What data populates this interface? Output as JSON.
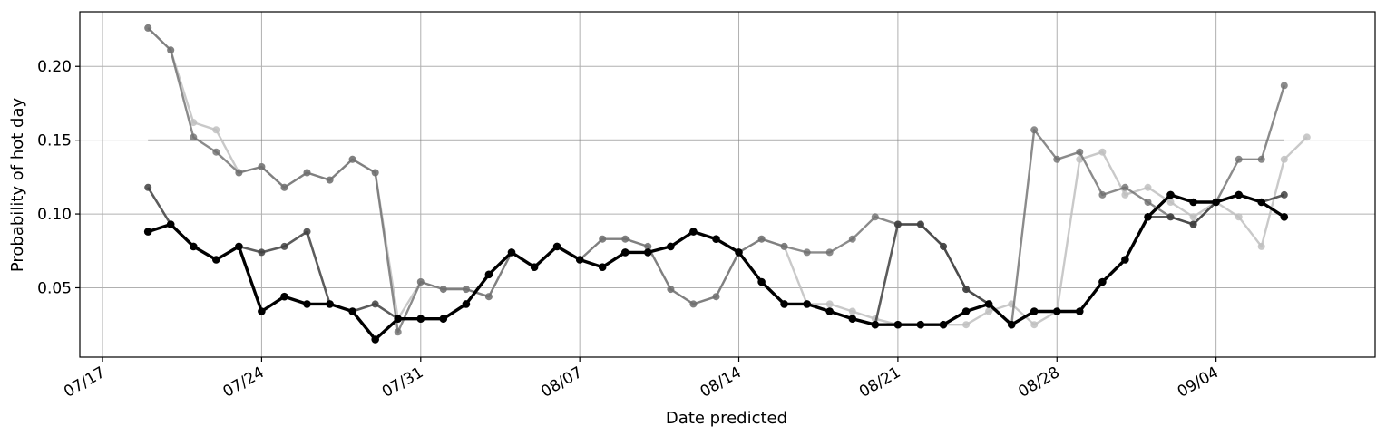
{
  "chart_data": {
    "type": "line",
    "title": "",
    "xlabel": "Date predicted",
    "ylabel": "Probability of hot day",
    "x_start": "07/19",
    "x_tick_labels": [
      "07/17",
      "07/24",
      "07/31",
      "08/07",
      "08/14",
      "08/21",
      "08/28",
      "09/04"
    ],
    "y_tick_labels": [
      "0.05",
      "0.10",
      "0.15",
      "0.20"
    ],
    "y_ticks": [
      0.05,
      0.1,
      0.15,
      0.2
    ],
    "xlim": [
      "07/16",
      "09/11"
    ],
    "ylim": [
      0.003,
      0.237
    ],
    "grid": true,
    "threshold": {
      "value": 0.15,
      "from": "07/19",
      "to": "09/07",
      "color": "#808080"
    },
    "series": [
      {
        "color": "#bfbfbf",
        "stroke_opacity": 0.85,
        "width": 2.4,
        "values": [
          0.226,
          0.211,
          0.162,
          0.157,
          0.128,
          0.132,
          0.118,
          0.128,
          0.123,
          0.137,
          0.128,
          0.029,
          0.054,
          0.049,
          0.049,
          0.044,
          0.074,
          0.064,
          0.078,
          0.069,
          0.083,
          0.083,
          0.078,
          0.049,
          0.039,
          0.044,
          0.074,
          0.083,
          0.078,
          0.039,
          0.039,
          0.034,
          0.029,
          0.025,
          0.025,
          0.025,
          0.025,
          0.034,
          0.039,
          0.025,
          0.034,
          0.137,
          0.142,
          0.113,
          0.118,
          0.108,
          0.098,
          0.108,
          0.098,
          0.078,
          0.137,
          0.152
        ]
      },
      {
        "color": "#6e6e6e",
        "stroke_opacity": 0.8,
        "width": 2.4,
        "values": [
          0.226,
          0.211,
          0.152,
          0.142,
          0.128,
          0.132,
          0.118,
          0.128,
          0.123,
          0.137,
          0.128,
          0.02,
          0.054,
          0.049,
          0.049,
          0.044,
          0.074,
          0.064,
          0.078,
          0.069,
          0.083,
          0.083,
          0.078,
          0.049,
          0.039,
          0.044,
          0.074,
          0.083,
          0.078,
          0.074,
          0.074,
          0.083,
          0.098,
          0.093,
          0.093,
          0.078,
          0.049,
          0.039,
          0.025,
          0.157,
          0.137,
          0.142,
          0.113,
          0.118,
          0.108,
          0.098,
          0.093,
          0.108,
          0.137,
          0.137,
          0.187
        ]
      },
      {
        "color": "#404040",
        "stroke_opacity": 0.85,
        "width": 2.6,
        "values": [
          0.118,
          0.093,
          0.078,
          0.069,
          0.078,
          0.074,
          0.078,
          0.088,
          0.039,
          0.034,
          0.039,
          0.029,
          0.029,
          0.029,
          0.039,
          0.059,
          0.074,
          0.064,
          0.078,
          0.069,
          0.064,
          0.074,
          0.074,
          0.078,
          0.088,
          0.083,
          0.074,
          0.054,
          0.039,
          0.039,
          0.034,
          0.029,
          0.025,
          0.093,
          0.093,
          0.078,
          0.049,
          0.039,
          0.025,
          0.034,
          0.034,
          0.034,
          0.054,
          0.069,
          0.098,
          0.098,
          0.093,
          0.108,
          0.113,
          0.108,
          0.113
        ]
      },
      {
        "color": "#000000",
        "stroke_opacity": 1,
        "width": 3.4,
        "values": [
          0.088,
          0.093,
          0.078,
          0.069,
          0.078,
          0.034,
          0.044,
          0.039,
          0.039,
          0.034,
          0.015,
          0.029,
          0.029,
          0.029,
          0.039,
          0.059,
          0.074,
          0.064,
          0.078,
          0.069,
          0.064,
          0.074,
          0.074,
          0.078,
          0.088,
          0.083,
          0.074,
          0.054,
          0.039,
          0.039,
          0.034,
          0.029,
          0.025,
          0.025,
          0.025,
          0.025,
          0.034,
          0.039,
          0.025,
          0.034,
          0.034,
          0.034,
          0.054,
          0.069,
          0.098,
          0.113,
          0.108,
          0.108,
          0.113,
          0.108,
          0.098
        ]
      }
    ]
  }
}
